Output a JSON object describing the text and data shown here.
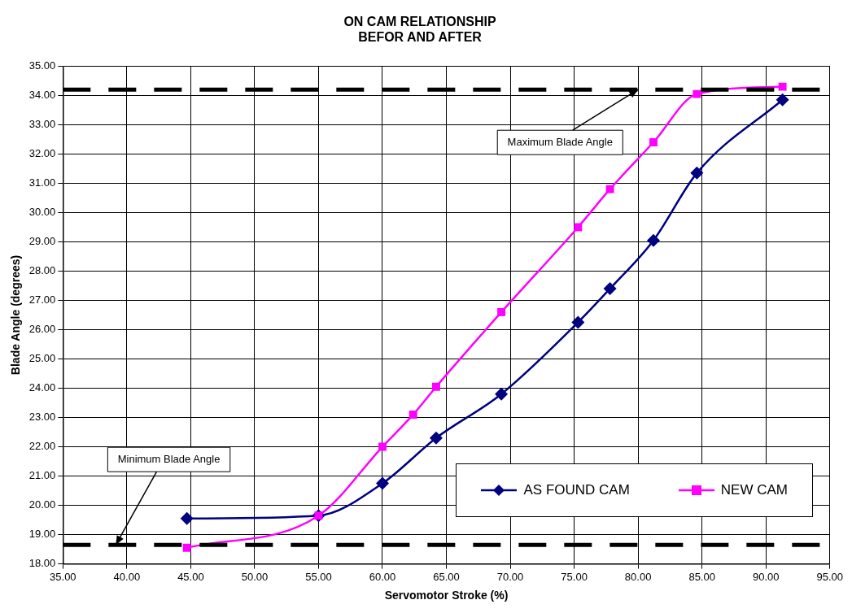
{
  "chart_data": {
    "type": "line",
    "title": "ON CAM RELATIONSHIP\nBEFOR AND AFTER",
    "xlabel": "Servomotor Stroke (%)",
    "ylabel": "Blade Angle (degrees)",
    "series": [
      {
        "name": "AS FOUND CAM",
        "color": "#000080",
        "marker": "diamond",
        "x": [
          44.7,
          55,
          60,
          64.2,
          69.3,
          75.3,
          77.8,
          81.2,
          84.6,
          91.3
        ],
        "values": [
          19.55,
          19.65,
          20.75,
          22.3,
          23.8,
          26.25,
          27.4,
          29.05,
          31.35,
          33.85
        ]
      },
      {
        "name": "NEW CAM",
        "color": "#ff00ff",
        "marker": "square",
        "x": [
          44.7,
          55,
          60,
          62.4,
          64.2,
          69.3,
          75.3,
          77.8,
          81.2,
          84.6,
          91.3
        ],
        "values": [
          18.55,
          19.65,
          22.0,
          23.1,
          24.05,
          26.6,
          29.5,
          30.8,
          32.4,
          34.05,
          34.3
        ]
      }
    ],
    "xlim": [
      35,
      95
    ],
    "xticks": [
      {
        "value": 35,
        "label": "35.00"
      },
      {
        "value": 40,
        "label": "40.00"
      },
      {
        "value": 45,
        "label": "45.00"
      },
      {
        "value": 50,
        "label": "50.00"
      },
      {
        "value": 55,
        "label": "55.00"
      },
      {
        "value": 60,
        "label": "60.00"
      },
      {
        "value": 65,
        "label": "65.00"
      },
      {
        "value": 70,
        "label": "70.00"
      },
      {
        "value": 75,
        "label": "75.00"
      },
      {
        "value": 80,
        "label": "80.00"
      },
      {
        "value": 85,
        "label": "85.00"
      },
      {
        "value": 90,
        "label": "90.00"
      },
      {
        "value": 95,
        "label": "95.00"
      }
    ],
    "ylim": [
      18,
      35
    ],
    "yticks": [
      {
        "value": 18,
        "label": "18.00"
      },
      {
        "value": 19,
        "label": "19.00"
      },
      {
        "value": 20,
        "label": "20.00"
      },
      {
        "value": 21,
        "label": "21.00"
      },
      {
        "value": 22,
        "label": "22.00"
      },
      {
        "value": 23,
        "label": "23.00"
      },
      {
        "value": 24,
        "label": "24.00"
      },
      {
        "value": 25,
        "label": "25.00"
      },
      {
        "value": 26,
        "label": "26.00"
      },
      {
        "value": 27,
        "label": "27.00"
      },
      {
        "value": 28,
        "label": "28.00"
      },
      {
        "value": 29,
        "label": "29.00"
      },
      {
        "value": 30,
        "label": "30.00"
      },
      {
        "value": 31,
        "label": "31.00"
      },
      {
        "value": 32,
        "label": "32.00"
      },
      {
        "value": 33,
        "label": "33.00"
      },
      {
        "value": 34,
        "label": "34.00"
      },
      {
        "value": 35,
        "label": "35.00"
      }
    ],
    "ref_lines": [
      {
        "axis": "y",
        "value": 18.65,
        "label": "Minimum Blade Angle",
        "color": "#000000",
        "line_style": "dashed"
      },
      {
        "axis": "y",
        "value": 34.2,
        "label": "Maximum Blade Angle",
        "color": "#000000",
        "line_style": "dashed"
      }
    ],
    "grid": true,
    "legend": "bottom right"
  }
}
